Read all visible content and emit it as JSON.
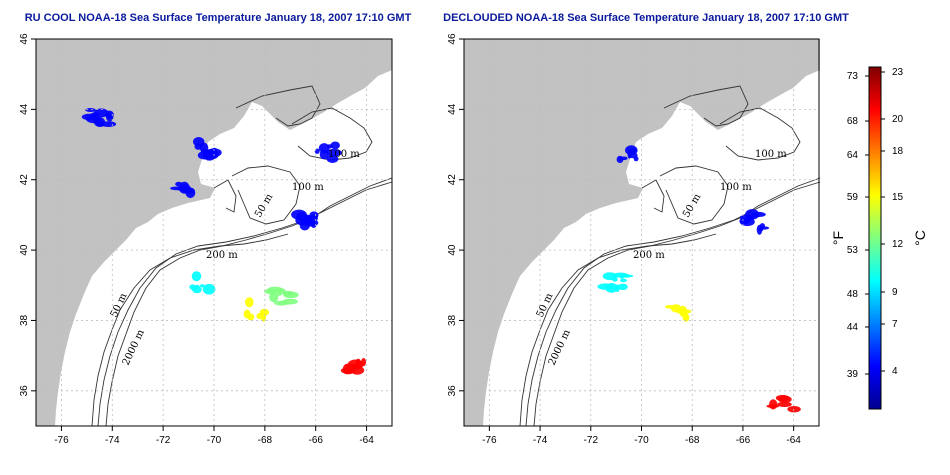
{
  "maps": [
    {
      "title": "RU COOL NOAA-18 Sea Surface Temperature January 18, 2007 17:10 GMT",
      "contour_labels": [
        "100 m",
        "100 m",
        "50 m",
        "200 m",
        "50 m",
        "2000 m"
      ]
    },
    {
      "title": "DECLOUDED NOAA-18 Sea Surface Temperature January 18, 2007 17:10 GMT",
      "contour_labels": [
        "100 m",
        "100 m",
        "50 m",
        "200 m",
        "50 m",
        "2000 m"
      ]
    }
  ],
  "colorbar": {
    "unit_left": "°F",
    "unit_right": "°C",
    "fahrenheit_ticks": [
      "73",
      "68",
      "64",
      "59",
      "53",
      "48",
      "44",
      "39"
    ],
    "celsius_ticks": [
      "23",
      "20",
      "18",
      "15",
      "12",
      "9",
      "7",
      "4"
    ],
    "colormap": [
      "#00008f",
      "#0000ff",
      "#0080ff",
      "#00ffff",
      "#80ff80",
      "#ffff00",
      "#ff8000",
      "#ff0000",
      "#800000"
    ]
  },
  "chart_data": [
    {
      "type": "heatmap",
      "title": "RU COOL NOAA-18 Sea Surface Temperature January 18, 2007 17:10 GMT",
      "x_ticks": [
        -76,
        -74,
        -72,
        -70,
        -68,
        -66,
        -64
      ],
      "y_ticks": [
        36,
        38,
        40,
        42,
        44,
        46
      ],
      "xlim": [
        -77,
        -63
      ],
      "ylim": [
        35,
        46
      ],
      "grid": true,
      "value_range_celsius": [
        2,
        24
      ],
      "sst_patches": [
        {
          "lon": -70.3,
          "lat": 42.9,
          "temp_c": 5
        },
        {
          "lon": -71.2,
          "lat": 41.7,
          "temp_c": 5
        },
        {
          "lon": -74.5,
          "lat": 43.8,
          "temp_c": 5
        },
        {
          "lon": -65.6,
          "lat": 42.8,
          "temp_c": 5
        },
        {
          "lon": -66.3,
          "lat": 40.8,
          "temp_c": 6
        },
        {
          "lon": -70.5,
          "lat": 39.1,
          "temp_c": 10
        },
        {
          "lon": -67.4,
          "lat": 38.7,
          "temp_c": 12
        },
        {
          "lon": -68.3,
          "lat": 38.3,
          "temp_c": 16
        },
        {
          "lon": -64.4,
          "lat": 36.6,
          "temp_c": 21
        }
      ]
    },
    {
      "type": "heatmap",
      "title": "DECLOUDED NOAA-18 Sea Surface Temperature January 18, 2007 17:10 GMT",
      "x_ticks": [
        -76,
        -74,
        -72,
        -70,
        -68,
        -66,
        -64
      ],
      "y_ticks": [
        36,
        38,
        40,
        42,
        44,
        46
      ],
      "xlim": [
        -77,
        -63
      ],
      "ylim": [
        35,
        46
      ],
      "grid": true,
      "value_range_celsius": [
        2,
        24
      ],
      "sst_patches": [
        {
          "lon": -70.5,
          "lat": 42.7,
          "temp_c": 5
        },
        {
          "lon": -71.0,
          "lat": 39.1,
          "temp_c": 10
        },
        {
          "lon": -68.5,
          "lat": 38.3,
          "temp_c": 16
        },
        {
          "lon": -65.5,
          "lat": 40.8,
          "temp_c": 6
        },
        {
          "lon": -64.4,
          "lat": 35.6,
          "temp_c": 21
        }
      ]
    }
  ]
}
